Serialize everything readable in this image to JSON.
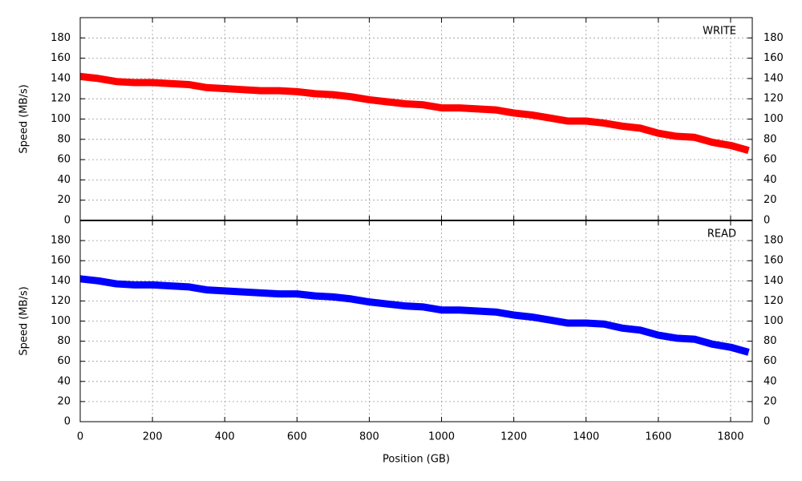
{
  "chart_data": [
    {
      "type": "line",
      "title": "WRITE",
      "ylabel": "Speed (MB/s)",
      "color": "#ff0000",
      "grid": true,
      "x": [
        0,
        50,
        100,
        150,
        200,
        250,
        300,
        350,
        400,
        450,
        500,
        550,
        600,
        650,
        700,
        750,
        800,
        850,
        900,
        950,
        1000,
        1050,
        1100,
        1150,
        1200,
        1250,
        1300,
        1350,
        1400,
        1450,
        1500,
        1550,
        1600,
        1650,
        1700,
        1750,
        1800,
        1850
      ],
      "values": [
        142,
        140,
        137,
        136,
        136,
        135,
        134,
        131,
        130,
        129,
        128,
        128,
        127,
        125,
        124,
        122,
        119,
        117,
        115,
        114,
        111,
        111,
        110,
        109,
        106,
        104,
        101,
        98,
        98,
        96,
        93,
        91,
        86,
        83,
        82,
        77,
        74,
        69
      ],
      "xlim": [
        0,
        1860
      ],
      "ylim": [
        0,
        200
      ],
      "yticks": [
        0,
        20,
        40,
        60,
        80,
        100,
        120,
        140,
        160,
        180
      ]
    },
    {
      "type": "line",
      "title": "READ",
      "ylabel": "Speed (MB/s)",
      "xlabel": "Position (GB)",
      "color": "#0000ff",
      "grid": true,
      "x": [
        0,
        50,
        100,
        150,
        200,
        250,
        300,
        350,
        400,
        450,
        500,
        550,
        600,
        650,
        700,
        750,
        800,
        850,
        900,
        950,
        1000,
        1050,
        1100,
        1150,
        1200,
        1250,
        1300,
        1350,
        1400,
        1450,
        1500,
        1550,
        1600,
        1650,
        1700,
        1750,
        1800,
        1850
      ],
      "values": [
        142,
        140,
        137,
        136,
        136,
        135,
        134,
        131,
        130,
        129,
        128,
        127,
        127,
        125,
        124,
        122,
        119,
        117,
        115,
        114,
        111,
        111,
        110,
        109,
        106,
        104,
        101,
        98,
        98,
        97,
        93,
        91,
        86,
        83,
        82,
        77,
        74,
        69
      ],
      "xlim": [
        0,
        1860
      ],
      "ylim": [
        0,
        200
      ],
      "xticks": [
        0,
        200,
        400,
        600,
        800,
        1000,
        1200,
        1400,
        1600,
        1800
      ],
      "yticks": [
        0,
        20,
        40,
        60,
        80,
        100,
        120,
        140,
        160,
        180
      ]
    }
  ]
}
